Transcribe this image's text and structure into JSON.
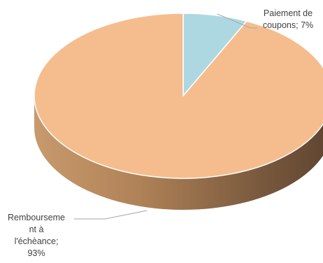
{
  "chart_data": {
    "type": "pie",
    "title": "",
    "slices": [
      {
        "label_lines": [
          "Paiement de",
          "coupons; 7%"
        ],
        "value": 7,
        "color": "#add8e2"
      },
      {
        "label_lines": [
          "Rembourseme",
          "nt à",
          "l'échèance;",
          "93%"
        ],
        "value": 93,
        "color": "#f5bd8e"
      }
    ],
    "grid": false,
    "legend": "none"
  }
}
